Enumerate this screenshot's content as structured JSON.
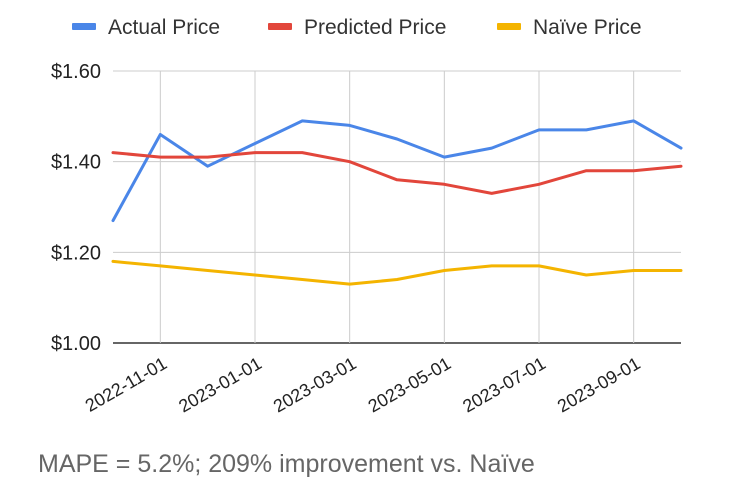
{
  "chart_data": {
    "type": "line",
    "title": "",
    "xlabel": "",
    "ylabel": "",
    "ylim": [
      1.0,
      1.6
    ],
    "yticks": [
      1.0,
      1.2,
      1.4,
      1.6
    ],
    "ytick_labels": [
      "$1.00",
      "$1.20",
      "$1.40",
      "$1.60"
    ],
    "grid": true,
    "legend_position": "top",
    "x": [
      "2022-10-01",
      "2022-11-01",
      "2022-12-01",
      "2023-01-01",
      "2023-02-01",
      "2023-03-01",
      "2023-04-01",
      "2023-05-01",
      "2023-06-01",
      "2023-07-01",
      "2023-08-01",
      "2023-09-01",
      "2023-10-01"
    ],
    "xtick_labels": [
      "2022-11-01",
      "2023-01-01",
      "2023-03-01",
      "2023-05-01",
      "2023-07-01",
      "2023-09-01"
    ],
    "series": [
      {
        "name": "Actual Price",
        "color": "#4a86e8",
        "values": [
          1.27,
          1.46,
          1.39,
          1.44,
          1.49,
          1.48,
          1.45,
          1.41,
          1.43,
          1.47,
          1.47,
          1.49,
          1.43
        ]
      },
      {
        "name": "Predicted Price",
        "color": "#e2463b",
        "values": [
          1.42,
          1.41,
          1.41,
          1.42,
          1.42,
          1.4,
          1.36,
          1.35,
          1.33,
          1.35,
          1.38,
          1.38,
          1.39
        ]
      },
      {
        "name": "Naïve Price",
        "color": "#f4b400",
        "values": [
          1.18,
          1.17,
          1.16,
          1.15,
          1.14,
          1.13,
          1.14,
          1.16,
          1.17,
          1.17,
          1.15,
          1.16,
          1.16
        ]
      }
    ]
  },
  "caption": "MAPE = 5.2%; 209% improvement vs. Naïve"
}
